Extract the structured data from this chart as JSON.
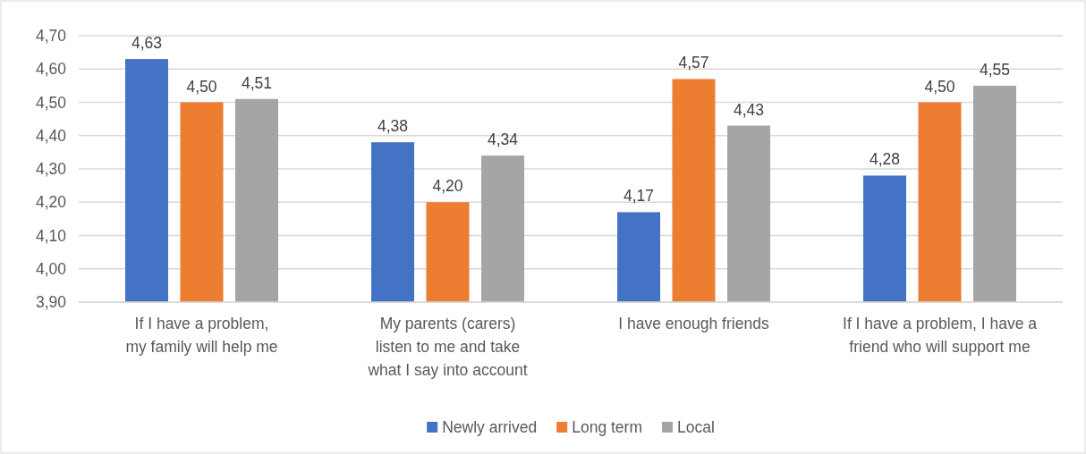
{
  "chart_data": {
    "type": "bar",
    "categories": [
      "If I have a problem, my family will help me",
      "My parents (carers) listen to me and take what I say into account",
      "I have enough friends",
      "If I have a problem, I have a friend who will support me"
    ],
    "series": [
      {
        "name": "Newly arrived",
        "color": "#4472c4",
        "values": [
          4.63,
          4.38,
          4.17,
          4.28
        ],
        "value_labels": [
          "4,63",
          "4,38",
          "4,17",
          "4,28"
        ]
      },
      {
        "name": "Long term",
        "color": "#ed7d31",
        "values": [
          4.5,
          4.2,
          4.57,
          4.5
        ],
        "value_labels": [
          "4,50",
          "4,20",
          "4,57",
          "4,50"
        ]
      },
      {
        "name": "Local",
        "color": "#a5a5a5",
        "values": [
          4.51,
          4.34,
          4.43,
          4.55
        ],
        "value_labels": [
          "4,51",
          "4,34",
          "4,43",
          "4,55"
        ]
      }
    ],
    "ylim": [
      3.9,
      4.7
    ],
    "yticks": [
      {
        "value": 3.9,
        "label": "3,90"
      },
      {
        "value": 4.0,
        "label": "4,00"
      },
      {
        "value": 4.1,
        "label": "4,10"
      },
      {
        "value": 4.2,
        "label": "4,20"
      },
      {
        "value": 4.3,
        "label": "4,30"
      },
      {
        "value": 4.4,
        "label": "4,40"
      },
      {
        "value": 4.5,
        "label": "4,50"
      },
      {
        "value": 4.6,
        "label": "4,60"
      },
      {
        "value": 4.7,
        "label": "4,70"
      }
    ],
    "grid": "y",
    "legend": "bottom"
  }
}
